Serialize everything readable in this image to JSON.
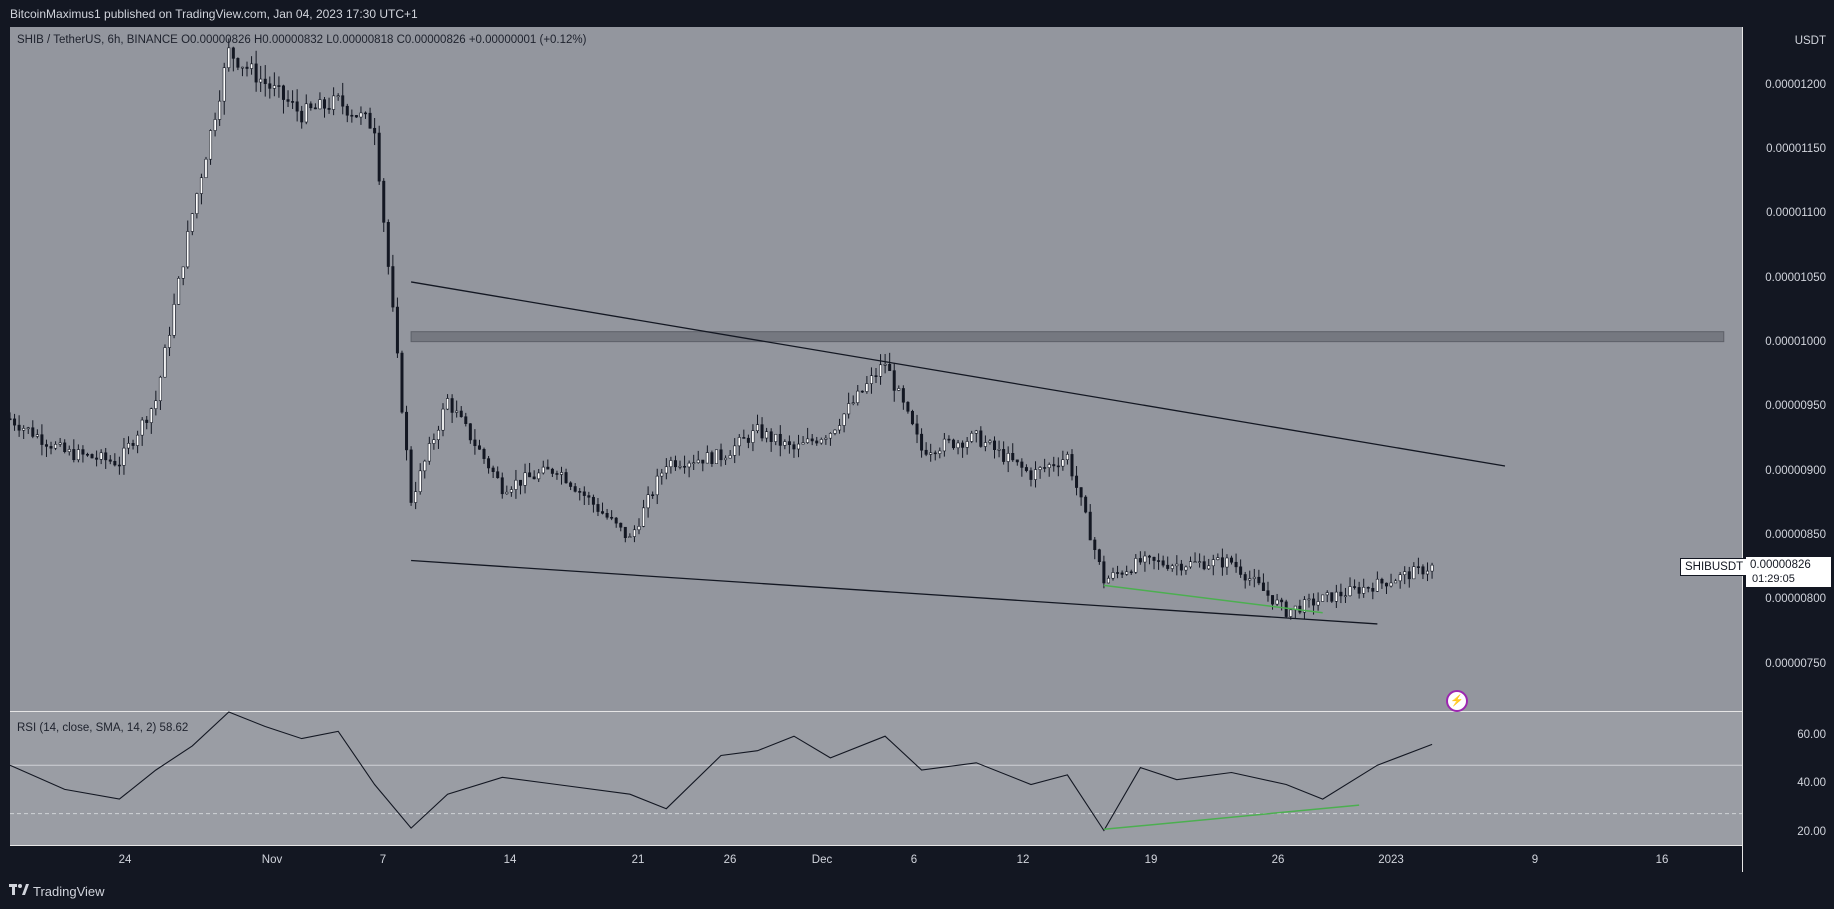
{
  "header": {
    "published_text": "BitcoinMaximus1 published on TradingView.com, Jan 04, 2023 17:30 UTC+1"
  },
  "legend": {
    "symbol": "SHIB / TetherUS, 6h, BINANCE",
    "ohlc_text": "O0.00000826 H0.00000832 L0.00000818 C0.00000826 +0.00000001 (+0.12%)"
  },
  "price_axis": {
    "unit": "USDT",
    "ticks": [
      "0.00001200",
      "0.00001150",
      "0.00001100",
      "0.00001050",
      "0.00001000",
      "0.00000950",
      "0.00000900",
      "0.00000850",
      "0.00000800",
      "0.00000750"
    ]
  },
  "rsi_axis": {
    "ticks": [
      "60.00",
      "40.00",
      "20.00"
    ]
  },
  "rsi_legend": {
    "text": "RSI (14, close, SMA, 14, 2)",
    "value": "58.62"
  },
  "time_axis": {
    "labels": [
      "24",
      "Nov",
      "7",
      "14",
      "21",
      "26",
      "Dec",
      "6",
      "12",
      "19",
      "26",
      "2023",
      "9",
      "16"
    ]
  },
  "last_price": {
    "ticker": "SHIBUSDT",
    "value": "0.00000826",
    "countdown": "01:29:05"
  },
  "footer": {
    "brand": "TradingView"
  },
  "chart_data": [
    {
      "type": "candlestick",
      "title": "SHIB / TetherUS, 6h, BINANCE",
      "ylim": [
        7.1e-06,
        1.26e-05
      ],
      "x_range": [
        "2022-10-18",
        "2023-01-21"
      ],
      "series": [
        {
          "name": "SHIBUSDT",
          "x": [
            "2022-10-18",
            "2022-10-21",
            "2022-10-24",
            "2022-10-26",
            "2022-10-28",
            "2022-10-30",
            "2022-11-01",
            "2022-11-03",
            "2022-11-05",
            "2022-11-07",
            "2022-11-09",
            "2022-11-11",
            "2022-11-14",
            "2022-11-17",
            "2022-11-21",
            "2022-11-23",
            "2022-11-26",
            "2022-11-28",
            "2022-11-30",
            "2022-12-02",
            "2022-12-05",
            "2022-12-07",
            "2022-12-10",
            "2022-12-13",
            "2022-12-15",
            "2022-12-17",
            "2022-12-19",
            "2022-12-21",
            "2022-12-24",
            "2022-12-27",
            "2022-12-29",
            "2023-01-01",
            "2023-01-04"
          ],
          "values": [
            9.45e-06,
            9.18e-06,
            9.1e-06,
            9.6e-06,
            1.11e-05,
            1.24e-05,
            1.215e-05,
            1.19e-05,
            1.2e-05,
            1.18e-05,
            8.8e-06,
            9.6e-06,
            8.9e-06,
            9.05e-06,
            8.48e-06,
            9.1e-06,
            9.15e-06,
            9.35e-06,
            9.2e-06,
            9.35e-06,
            9.9e-06,
            9.2e-06,
            9.3e-06,
            9e-06,
            9.15e-06,
            8.15e-06,
            8.3e-06,
            8.28e-06,
            8.3e-06,
            7.9e-06,
            8e-06,
            8.12e-06,
            8.26e-06
          ]
        }
      ],
      "annotations": [
        {
          "type": "trendline",
          "label": "descending resistance",
          "from": [
            "2022-11-09",
            1.055e-05
          ],
          "to": [
            "2023-01-08",
            9.07e-06
          ]
        },
        {
          "type": "trendline",
          "label": "descending support",
          "from": [
            "2022-11-09",
            8.31e-06
          ],
          "to": [
            "2023-01-01",
            7.8e-06
          ]
        },
        {
          "type": "zone",
          "label": "horizontal resistance",
          "from": "2022-11-09",
          "to": "2023-01-20",
          "ymin": 1.007e-05,
          "ymax": 1.015e-05
        },
        {
          "type": "trendline",
          "color": "#4caf50",
          "label": "bullish divergence",
          "from": [
            "2022-12-17",
            8.11e-06
          ],
          "to": [
            "2022-12-29",
            7.89e-06
          ]
        }
      ]
    },
    {
      "type": "line",
      "title": "RSI (14, close, SMA, 14, 2)",
      "ylim": [
        17,
        72
      ],
      "hlines": [
        50,
        30
      ],
      "series": [
        {
          "name": "RSI",
          "x": [
            "2022-10-18",
            "2022-10-21",
            "2022-10-24",
            "2022-10-26",
            "2022-10-28",
            "2022-10-30",
            "2022-11-01",
            "2022-11-03",
            "2022-11-05",
            "2022-11-07",
            "2022-11-09",
            "2022-11-11",
            "2022-11-14",
            "2022-11-17",
            "2022-11-21",
            "2022-11-23",
            "2022-11-26",
            "2022-11-28",
            "2022-11-30",
            "2022-12-02",
            "2022-12-05",
            "2022-12-07",
            "2022-12-10",
            "2022-12-13",
            "2022-12-15",
            "2022-12-17",
            "2022-12-19",
            "2022-12-21",
            "2022-12-24",
            "2022-12-27",
            "2022-12-29",
            "2023-01-01",
            "2023-01-04"
          ],
          "values": [
            50,
            40,
            36,
            48,
            58,
            72,
            66,
            61,
            64,
            42,
            24,
            38,
            45,
            42,
            38,
            32,
            54,
            56,
            62,
            53,
            62,
            48,
            51,
            42,
            46,
            23,
            49,
            44,
            47,
            42,
            36,
            50,
            58.62
          ]
        }
      ],
      "annotations": [
        {
          "type": "trendline",
          "color": "#4caf50",
          "label": "RSI bullish divergence",
          "from": [
            "2022-12-17",
            23.5
          ],
          "to": [
            "2022-12-31",
            33.5
          ]
        }
      ]
    }
  ]
}
